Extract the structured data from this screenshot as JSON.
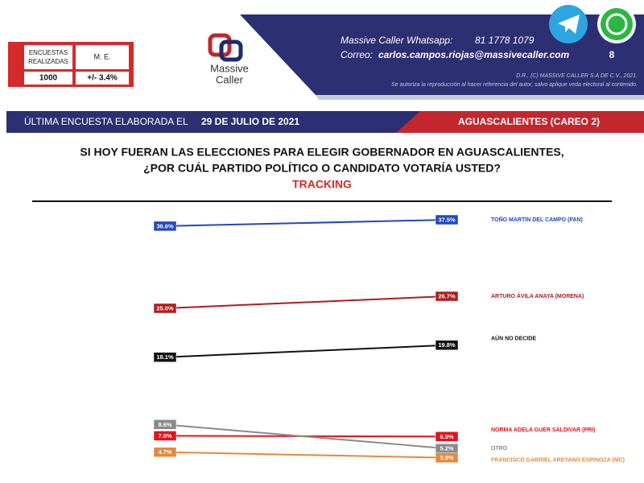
{
  "header": {
    "surveys_label": "ENCUESTAS REALIZADAS",
    "margin_label": "M. E.",
    "surveys_value": "1000",
    "margin_value": "+/- 3.4%",
    "logo_line1": "Massive",
    "logo_line2": "Caller",
    "whatsapp_label": "Massive Caller Whatsapp:",
    "whatsapp_number": "81 1778 1079",
    "email_label": "Correo:",
    "email": "carlos.campos.riojas@massivecaller.com",
    "page_number": "8",
    "copyright": "D.R., (C) MASSIVE CALLER S.A DE C.V., 2021.",
    "notice": "Se autoriza la reproducción al hacer referencia del autor, salvo aplique veda electoral al contenido."
  },
  "banner": {
    "prefix": "ÚLTIMA ENCUESTA ELABORADA EL",
    "date": "29 DE JULIO DE 2021",
    "region": "AGUASCALIENTES (CAREO 2)"
  },
  "chart_data": {
    "type": "line",
    "title": [
      "SI HOY FUERAN LAS ELECCIONES PARA ELEGIR GOBERNADOR EN AGUASCALIENTES,",
      "¿POR CUÁL PARTIDO POLÍTICO O CANDIDATO VOTARÍA USTED?"
    ],
    "subtitle": "TRACKING",
    "categories": [
      null,
      null
    ],
    "ylim": [
      0,
      40
    ],
    "series": [
      {
        "name": "TOÑO MARTÍN DEL CAMPO (PAN)",
        "color": "#2446c4",
        "values": [
          36.6,
          37.5
        ],
        "value_labels": [
          "36.6%",
          "37.5%"
        ]
      },
      {
        "name": "ARTURO ÁVILA ANAYA (MORENA)",
        "color": "#b01c1c",
        "values": [
          25.0,
          26.7
        ],
        "value_labels": [
          "25.0%",
          "26.7%"
        ]
      },
      {
        "name": "AÚN NO DECIDE",
        "color": "#111111",
        "values": [
          18.1,
          19.8
        ],
        "value_labels": [
          "18.1%",
          "19.8%"
        ]
      },
      {
        "name": "NORMA ADELA GUER SALDIVAR (PRI)",
        "color": "#e3141b",
        "values": [
          7.0,
          6.9
        ],
        "value_labels": [
          "7.0%",
          "6.9%"
        ]
      },
      {
        "name": "OTRO",
        "color": "#8a8a8a",
        "values": [
          8.6,
          5.2
        ],
        "value_labels": [
          "8.6%",
          "5.2%"
        ]
      },
      {
        "name": "FRANCISCO GABRIEL AREYANO ESPINOZA (MC)",
        "color": "#e8883a",
        "values": [
          4.7,
          3.9
        ],
        "value_labels": [
          "4.7%",
          "3.9%"
        ]
      }
    ]
  }
}
